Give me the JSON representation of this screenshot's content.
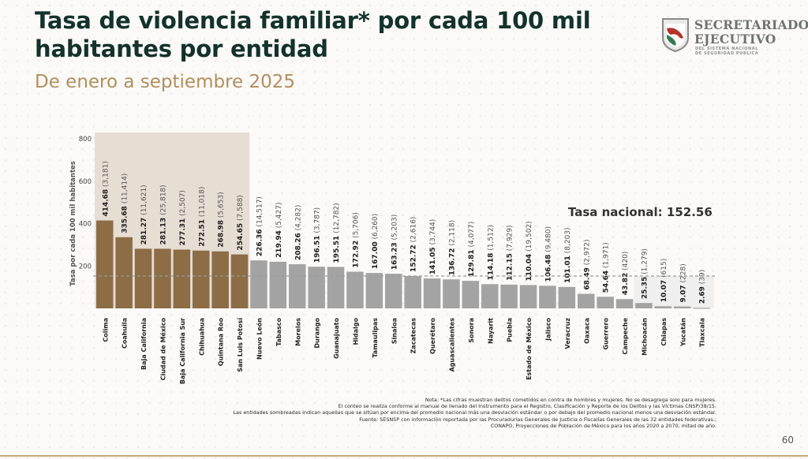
{
  "header": {
    "title": "Tasa de violencia familiar* por cada 100 mil habitantes por entidad",
    "subtitle": "De enero a septiembre 2025"
  },
  "logo": {
    "line1": "SECRETARIADO",
    "line2": "EJECUTIVO",
    "line3": "DEL SISTEMA NACIONAL",
    "line4": "DE SEGURIDAD PÚBLICA"
  },
  "colors": {
    "highlight_bar": "#8c6d46",
    "normal_bar": "#a3a3a3",
    "shade_high": "#e6ddd3",
    "shade_low": "#efefef",
    "title": "#13322b",
    "subtitle": "#b38e5d"
  },
  "chart_data": {
    "type": "bar",
    "title": "Tasa de violencia familiar* por cada 100 mil habitantes por entidad",
    "xlabel": "",
    "ylabel": "Tasa por cada 100 mil habitantes",
    "ylim": [
      0,
      800
    ],
    "yticks": [
      200,
      400,
      600,
      800
    ],
    "grid": false,
    "reference_line": {
      "label": "Tasa nacional: 152.56",
      "value": 152.56
    },
    "categories": [
      "Colima",
      "Coahuila",
      "Baja California",
      "Ciudad de México",
      "Baja California Sur",
      "Chihuahua",
      "Quintana Roo",
      "San Luis Potosí",
      "Nuevo León",
      "Tabasco",
      "Morelos",
      "Durango",
      "Guanajuato",
      "Hidalgo",
      "Tamaulipas",
      "Sinaloa",
      "Zacatecas",
      "Querétaro",
      "Aguascalientes",
      "Sonora",
      "Nayarit",
      "Puebla",
      "Estado de México",
      "Jalisco",
      "Veracruz",
      "Oaxaca",
      "Guerrero",
      "Campeche",
      "Michoacán",
      "Chiapas",
      "Yucatán",
      "Tlaxcala"
    ],
    "values": [
      414.68,
      335.68,
      281.27,
      281.13,
      277.31,
      272.51,
      268.98,
      254.65,
      226.36,
      219.94,
      208.26,
      196.51,
      195.51,
      172.92,
      167.0,
      163.23,
      152.72,
      141.05,
      136.72,
      129.81,
      114.18,
      112.15,
      110.04,
      106.48,
      101.01,
      68.49,
      54.64,
      43.82,
      25.35,
      10.07,
      9.07,
      2.69
    ],
    "value_labels": [
      "414.68",
      "335.68",
      "281.27",
      "281.13",
      "277.31",
      "272.51",
      "268.98",
      "254.65",
      "226.36",
      "219.94",
      "208.26",
      "196.51",
      "195.51",
      "172.92",
      "167.00",
      "163.23",
      "152.72",
      "141.05",
      "136.72",
      "129.81",
      "114.18",
      "112.15",
      "110.04",
      "106.48",
      "101.01",
      "68.49",
      "54.64",
      "43.82",
      "25.35",
      "10.07",
      "9.07",
      "2.69"
    ],
    "counts": [
      "(3,181)",
      "(11,414)",
      "(11,621)",
      "(25,818)",
      "(2,507)",
      "(11,018)",
      "(5,653)",
      "(7,588)",
      "(14,517)",
      "(5,427)",
      "(4,282)",
      "(3,787)",
      "(12,782)",
      "(5,706)",
      "(6,260)",
      "(5,203)",
      "(2,616)",
      "(3,744)",
      "(2,118)",
      "(4,077)",
      "(1,512)",
      "(7,929)",
      "(19,502)",
      "(9,480)",
      "(8,203)",
      "(2,972)",
      "(1,971)",
      "(420)",
      "(1,279)",
      "(615)",
      "(228)",
      "(39)"
    ],
    "highlighted_above": [
      "Colima",
      "Coahuila",
      "Baja California",
      "Ciudad de México",
      "Baja California Sur",
      "Chihuahua",
      "Quintana Roo",
      "San Luis Potosí"
    ],
    "shaded_below": [
      "Michoacán",
      "Chiapas",
      "Yucatán",
      "Tlaxcala"
    ]
  },
  "notes": [
    "Nota: *Las cifras muestran delitos cometidos en contra de hombres y mujeres. No se desagrega solo para mujeres.",
    "El conteo se realiza conforme al manual de llenado del Instrumento para el Registro, Clasificación y Reporte de los Delitos y las Víctimas CNSP/38/15.",
    "Las entidades sombreadas indican aquellas que se sitúan por encima del promedio nacional más una desviación estándar o por debajo del promedio nacional menos una desviación estándar.",
    "Fuente: SESNSP con información reportada por las Procuradurías Generales de Justicia o Fiscalías Generales de las 32 entidades federativas.;",
    "CONAPO, Proyecciones de Población de México para los años 2020 a 2070, mitad de año."
  ],
  "page_number": "60"
}
